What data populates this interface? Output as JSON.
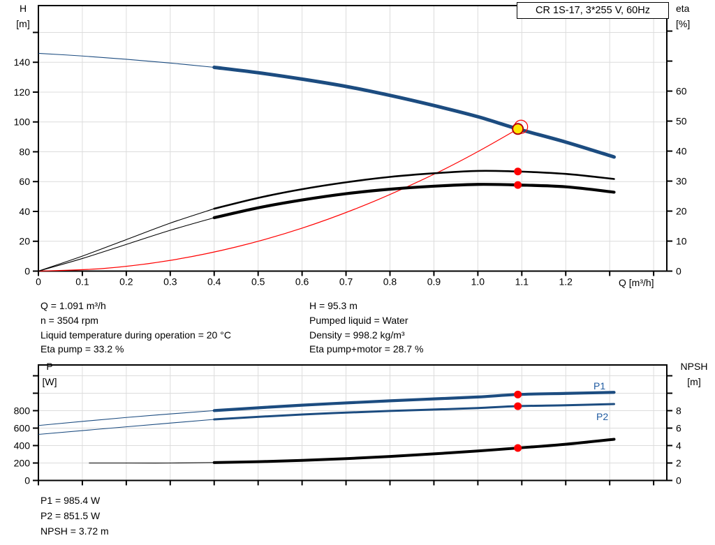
{
  "colors": {
    "curve_blue": "#1c4c80",
    "curve_red": "#ff0000",
    "curve_black": "#000000",
    "dot_red": "#ff0000",
    "duty_fill_yellow": "#ffe600",
    "duty_ring_red": "#b40000",
    "grid": "#dcdcdc",
    "axis": "#000000",
    "label_blue": "#1e5aa0"
  },
  "title_box": {
    "label": "CR 1S-17, 3*255 V, 60Hz"
  },
  "annotations": {
    "left": [
      "Q = 1.091 m³/h",
      "n = 3504 rpm",
      "Liquid temperature during operation = 20 °C",
      "Eta pump = 33.2 %"
    ],
    "right": [
      "H = 95.3 m",
      "Pumped liquid = Water",
      "Density = 998.2 kg/m³",
      "Eta pump+motor = 28.7 %"
    ],
    "bottom": [
      "P1 = 985.4 W",
      "P2 = 851.5 W",
      "NPSH = 3.72 m"
    ]
  },
  "chart_data": [
    {
      "type": "line",
      "name": "hq-eta-chart",
      "title": "CR 1S-17, 3*255 V, 60Hz",
      "x_axis": {
        "label": "Q [m³/h]",
        "min": 0,
        "max": 1.43,
        "tick_step": 0.1,
        "tick_labels": [
          "0",
          "0.1",
          "0.2",
          "0.3",
          "0.4",
          "0.5",
          "0.6",
          "0.7",
          "0.8",
          "0.9",
          "1.0",
          "1.1",
          "1.2"
        ]
      },
      "y_left": {
        "name": "H",
        "unit": "[m]",
        "min": 0,
        "max": 178,
        "tick_step": 20,
        "labeled_ticks": [
          0,
          20,
          40,
          60,
          80,
          100,
          120,
          140
        ]
      },
      "y_right": {
        "name": "eta",
        "unit": "[%]",
        "min": 0,
        "max": 88.5,
        "tick_step": 10,
        "labeled_ticks": [
          0,
          10,
          20,
          30,
          40,
          50,
          60
        ]
      },
      "grid": true,
      "series": [
        {
          "name": "system-curve",
          "color": "red",
          "axis": "left",
          "width": 1.2,
          "points": [
            [
              0,
              0
            ],
            [
              0.15,
              1.8
            ],
            [
              0.3,
              7.2
            ],
            [
              0.45,
              16.2
            ],
            [
              0.6,
              28.8
            ],
            [
              0.75,
              45.1
            ],
            [
              0.9,
              64.9
            ],
            [
              1.0,
              80.1
            ],
            [
              1.091,
              95.3
            ]
          ]
        },
        {
          "name": "eta-pump-curve",
          "color": "black",
          "axis": "right",
          "width": 2.6,
          "thin_until": 0.4,
          "points": [
            [
              0,
              0
            ],
            [
              0.1,
              5
            ],
            [
              0.2,
              10.5
            ],
            [
              0.3,
              16
            ],
            [
              0.4,
              20.8
            ],
            [
              0.5,
              24.4
            ],
            [
              0.6,
              27.3
            ],
            [
              0.7,
              29.6
            ],
            [
              0.8,
              31.4
            ],
            [
              0.9,
              32.6
            ],
            [
              1.0,
              33.4
            ],
            [
              1.091,
              33.2
            ],
            [
              1.2,
              32.4
            ],
            [
              1.31,
              30.7
            ]
          ]
        },
        {
          "name": "eta-pump-motor-curve",
          "color": "black",
          "axis": "right",
          "width": 4.2,
          "thin_until": 0.4,
          "points": [
            [
              0,
              0
            ],
            [
              0.1,
              4.2
            ],
            [
              0.2,
              8.9
            ],
            [
              0.3,
              13.6
            ],
            [
              0.4,
              17.8
            ],
            [
              0.5,
              21.1
            ],
            [
              0.6,
              23.7
            ],
            [
              0.7,
              25.8
            ],
            [
              0.8,
              27.3
            ],
            [
              0.9,
              28.3
            ],
            [
              1.0,
              28.9
            ],
            [
              1.091,
              28.7
            ],
            [
              1.2,
              28.1
            ],
            [
              1.31,
              26.3
            ]
          ]
        },
        {
          "name": "head-curve",
          "color": "blue",
          "axis": "left",
          "width": 5,
          "thin_until": 0.4,
          "points": [
            [
              0,
              146
            ],
            [
              0.1,
              144.2
            ],
            [
              0.2,
              142
            ],
            [
              0.3,
              139.5
            ],
            [
              0.4,
              136.6
            ],
            [
              0.5,
              133
            ],
            [
              0.6,
              128.7
            ],
            [
              0.7,
              123.8
            ],
            [
              0.8,
              117.8
            ],
            [
              0.9,
              111
            ],
            [
              1.0,
              103.5
            ],
            [
              1.091,
              95.3
            ],
            [
              1.2,
              86.5
            ],
            [
              1.31,
              76.5
            ]
          ]
        }
      ],
      "markers": [
        {
          "axis": "right",
          "q": 1.091,
          "v": 33.2,
          "style": "dot",
          "name": "eta-pump-duty-dot"
        },
        {
          "axis": "right",
          "q": 1.091,
          "v": 28.7,
          "style": "dot",
          "name": "eta-pump-motor-duty-dot"
        },
        {
          "axis": "left",
          "q": 1.091,
          "v": 95.3,
          "style": "duty",
          "name": "duty-point-marker"
        }
      ],
      "duty_point": {
        "Q": 1.091,
        "H": 95.3,
        "eta_pump": 33.2,
        "eta_pump_motor": 28.7,
        "n_rpm": 3504
      }
    },
    {
      "type": "line",
      "name": "power-npsh-chart",
      "x_axis": {
        "label": "",
        "min": 0,
        "max": 1.43,
        "tick_step": 0.1,
        "tick_labels": []
      },
      "y_left": {
        "name": "P",
        "unit": "[W]",
        "min": 0,
        "max": 1324,
        "tick_step": 200,
        "labeled_ticks": [
          0,
          200,
          400,
          600,
          800
        ]
      },
      "y_right": {
        "name": "NPSH",
        "unit": "[m]",
        "min": 0,
        "max": 13.24,
        "tick_step": 2,
        "labeled_ticks": [
          0,
          2,
          4,
          6,
          8
        ]
      },
      "grid": true,
      "curve_labels": {
        "p1": "P1",
        "p2": "P2"
      },
      "series": [
        {
          "name": "p1-curve",
          "color": "blue",
          "axis": "left",
          "width": 4.2,
          "thin_until": 0.4,
          "points": [
            [
              0,
              630
            ],
            [
              0.2,
              722
            ],
            [
              0.4,
              801
            ],
            [
              0.6,
              863
            ],
            [
              0.8,
              913
            ],
            [
              0.9,
              935
            ],
            [
              1.0,
              957
            ],
            [
              1.091,
              985.4
            ],
            [
              1.2,
              998
            ],
            [
              1.31,
              1010
            ]
          ]
        },
        {
          "name": "p2-curve",
          "color": "blue",
          "axis": "left",
          "width": 3,
          "thin_until": 0.4,
          "points": [
            [
              0,
              528
            ],
            [
              0.2,
              615
            ],
            [
              0.4,
              700
            ],
            [
              0.6,
              756
            ],
            [
              0.8,
              797
            ],
            [
              0.9,
              813
            ],
            [
              1.0,
              830
            ],
            [
              1.091,
              851.5
            ],
            [
              1.2,
              862
            ],
            [
              1.31,
              876
            ]
          ]
        },
        {
          "name": "npsh-curve",
          "color": "black",
          "axis": "right",
          "width": 4,
          "thin_until": 0.4,
          "points": [
            [
              0.115,
              2.0
            ],
            [
              0.2,
              2.0
            ],
            [
              0.3,
              2.0
            ],
            [
              0.4,
              2.05
            ],
            [
              0.5,
              2.15
            ],
            [
              0.6,
              2.3
            ],
            [
              0.7,
              2.5
            ],
            [
              0.8,
              2.75
            ],
            [
              0.9,
              3.05
            ],
            [
              1.0,
              3.38
            ],
            [
              1.091,
              3.72
            ],
            [
              1.2,
              4.15
            ],
            [
              1.31,
              4.72
            ]
          ]
        }
      ],
      "markers": [
        {
          "axis": "left",
          "q": 1.091,
          "v": 985.4,
          "style": "dot",
          "name": "p1-duty-dot"
        },
        {
          "axis": "left",
          "q": 1.091,
          "v": 851.5,
          "style": "dot",
          "name": "p2-duty-dot"
        },
        {
          "axis": "right",
          "q": 1.091,
          "v": 3.72,
          "style": "dot",
          "name": "npsh-duty-dot"
        }
      ],
      "duty_point": {
        "Q": 1.091,
        "P1": 985.4,
        "P2": 851.5,
        "NPSH": 3.72
      }
    }
  ]
}
